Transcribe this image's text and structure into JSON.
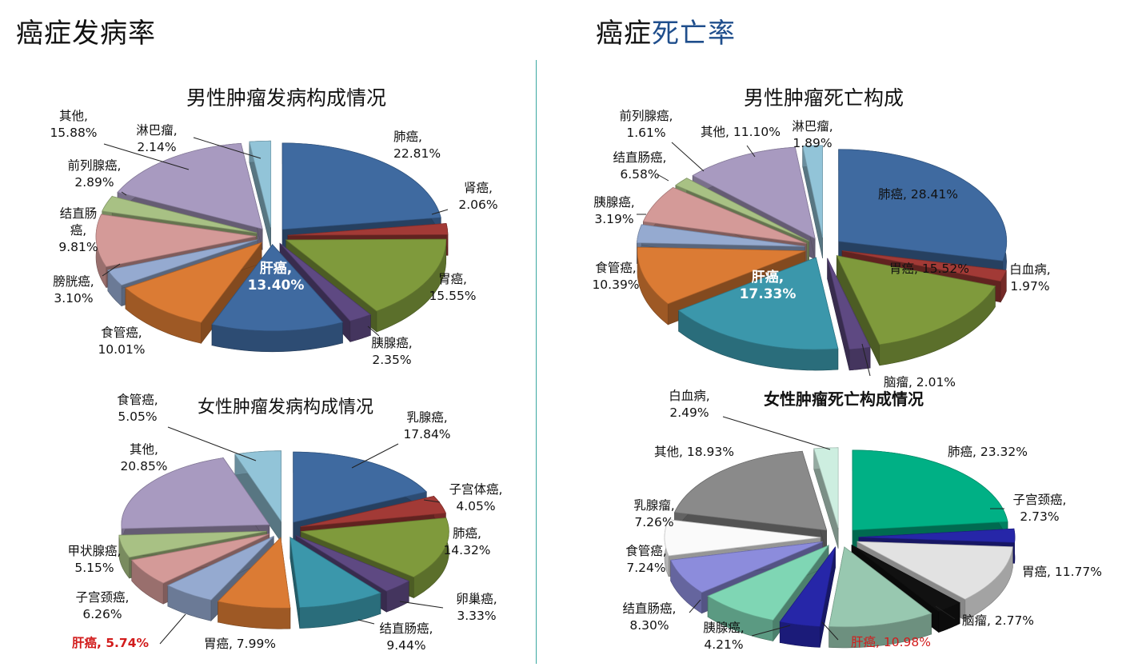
{
  "headings": {
    "incidence": "癌症发病率",
    "mortality_prefix": "癌症",
    "mortality_accent": "死亡率"
  },
  "chart_data": [
    {
      "id": "male_incidence",
      "type": "pie",
      "title": "男性肿瘤发病构成情况",
      "slices": [
        {
          "name": "肺癌",
          "value": 22.81,
          "color": "#3f6aa0",
          "labels": [
            "肺癌,",
            "22.81%"
          ]
        },
        {
          "name": "肾癌",
          "value": 2.06,
          "color": "#a23a36",
          "labels": [
            "肾癌,",
            "2.06%"
          ]
        },
        {
          "name": "胃癌",
          "value": 15.55,
          "color": "#7f9a3c",
          "labels": [
            "胃癌,",
            "15.55%"
          ]
        },
        {
          "name": "胰腺癌",
          "value": 2.35,
          "color": "#5e4982",
          "labels": [
            "胰腺癌,",
            "2.35%"
          ]
        },
        {
          "name": "肝癌",
          "value": 13.4,
          "color": "#3f6aa0",
          "labels": [
            "肝癌,",
            "13.40%"
          ],
          "inner": true
        },
        {
          "name": "食管癌",
          "value": 10.01,
          "color": "#db7b34",
          "labels": [
            "食管癌,",
            "10.01%"
          ]
        },
        {
          "name": "膀胱癌",
          "value": 3.1,
          "color": "#95aad0",
          "labels": [
            "膀胱癌,",
            "3.10%"
          ]
        },
        {
          "name": "结直肠癌",
          "value": 9.81,
          "color": "#d49a98",
          "labels": [
            "结直肠",
            "癌,",
            "9.81%"
          ]
        },
        {
          "name": "前列腺癌",
          "value": 2.89,
          "color": "#a8c184",
          "labels": [
            "前列腺癌,",
            "2.89%"
          ]
        },
        {
          "name": "其他",
          "value": 15.88,
          "color": "#a89ac0",
          "labels": [
            "其他,",
            "15.88%"
          ]
        },
        {
          "name": "淋巴瘤",
          "value": 2.14,
          "color": "#92c4d8",
          "labels": [
            "淋巴瘤,",
            "2.14%"
          ]
        }
      ]
    },
    {
      "id": "male_mortality",
      "type": "pie",
      "title": "男性肿瘤死亡构成",
      "slices": [
        {
          "name": "肺癌",
          "value": 28.41,
          "color": "#3f6aa0",
          "labels": [
            "肺癌, 28.41%"
          ],
          "inner": "dark"
        },
        {
          "name": "白血病",
          "value": 1.97,
          "color": "#a23a36",
          "labels": [
            "白血病,",
            "1.97%"
          ]
        },
        {
          "name": "胃癌",
          "value": 15.52,
          "color": "#7f9a3c",
          "labels": [
            "胃癌, 15.52%"
          ],
          "inner": "dark"
        },
        {
          "name": "脑瘤",
          "value": 2.01,
          "color": "#5e4982",
          "labels": [
            "脑瘤, 2.01%"
          ]
        },
        {
          "name": "肝癌",
          "value": 17.33,
          "color": "#3b97ab",
          "labels": [
            "肝癌,",
            "17.33%"
          ],
          "inner": true
        },
        {
          "name": "食管癌",
          "value": 10.39,
          "color": "#db7b34",
          "labels": [
            "食管癌,",
            "10.39%"
          ]
        },
        {
          "name": "胰腺癌",
          "value": 3.19,
          "color": "#95aad0",
          "labels": [
            "胰腺癌,",
            "3.19%"
          ]
        },
        {
          "name": "结直肠癌",
          "value": 6.58,
          "color": "#d49a98",
          "labels": [
            "结直肠癌,",
            "6.58%"
          ]
        },
        {
          "name": "前列腺癌",
          "value": 1.61,
          "color": "#a8c184",
          "labels": [
            "前列腺癌,",
            "1.61%"
          ]
        },
        {
          "name": "其他",
          "value": 11.1,
          "color": "#a89ac0",
          "labels": [
            "其他, 11.10%"
          ]
        },
        {
          "name": "淋巴瘤",
          "value": 1.89,
          "color": "#92c4d8",
          "labels": [
            "淋巴瘤,",
            "1.89%"
          ]
        }
      ]
    },
    {
      "id": "female_incidence",
      "type": "pie",
      "title": "女性肿瘤发病构成情况",
      "slices": [
        {
          "name": "乳腺癌",
          "value": 17.84,
          "color": "#3f6aa0",
          "labels": [
            "乳腺癌,",
            "17.84%"
          ]
        },
        {
          "name": "子宫体癌",
          "value": 4.05,
          "color": "#a23a36",
          "labels": [
            "子宫体癌,",
            "4.05%"
          ]
        },
        {
          "name": "肺癌",
          "value": 14.32,
          "color": "#7f9a3c",
          "labels": [
            "肺癌,",
            "14.32%"
          ]
        },
        {
          "name": "卵巢癌",
          "value": 3.33,
          "color": "#5e4982",
          "labels": [
            "卵巢癌,",
            "3.33%"
          ]
        },
        {
          "name": "结直肠癌",
          "value": 9.44,
          "color": "#3b97ab",
          "labels": [
            "结直肠癌,",
            "9.44%"
          ]
        },
        {
          "name": "胃癌",
          "value": 7.99,
          "color": "#db7b34",
          "labels": [
            "胃癌, 7.99%"
          ]
        },
        {
          "name": "肝癌",
          "value": 5.74,
          "color": "#95aad0",
          "labels": [
            "肝癌, 5.74%"
          ],
          "red": "bold"
        },
        {
          "name": "子宫颈癌",
          "value": 6.26,
          "color": "#d49a98",
          "labels": [
            "子宫颈癌,",
            "6.26%"
          ]
        },
        {
          "name": "甲状腺癌",
          "value": 5.15,
          "color": "#a8c184",
          "labels": [
            "甲状腺癌,",
            "5.15%"
          ]
        },
        {
          "name": "其他",
          "value": 20.85,
          "color": "#a89ac0",
          "labels": [
            "其他,",
            "20.85%"
          ]
        },
        {
          "name": "食管癌",
          "value": 5.05,
          "color": "#92c4d8",
          "labels": [
            "食管癌,",
            "5.05%"
          ]
        }
      ]
    },
    {
      "id": "female_mortality",
      "type": "pie",
      "title": "女性肿瘤死亡构成情况",
      "slices": [
        {
          "name": "肺癌",
          "value": 23.32,
          "color": "#00b085",
          "labels": [
            "肺癌, 23.32%"
          ]
        },
        {
          "name": "子宫颈癌",
          "value": 2.73,
          "color": "#2626a8",
          "labels": [
            "子宫颈癌,",
            "2.73%"
          ]
        },
        {
          "name": "胃癌",
          "value": 11.77,
          "color": "#e2e2e2",
          "labels": [
            "胃癌, 11.77%"
          ]
        },
        {
          "name": "脑瘤",
          "value": 2.77,
          "color": "#111111",
          "labels": [
            "脑瘤, 2.77%"
          ]
        },
        {
          "name": "肝癌",
          "value": 10.98,
          "color": "#98c8b0",
          "labels": [
            "肝癌, 10.98%"
          ],
          "red": "plain"
        },
        {
          "name": "胰腺癌",
          "value": 4.21,
          "color": "#2626a8",
          "labels": [
            "胰腺癌,",
            "4.21%"
          ]
        },
        {
          "name": "结直肠癌",
          "value": 8.3,
          "color": "#7fd6b4",
          "labels": [
            "结直肠癌,",
            "8.30%"
          ]
        },
        {
          "name": "食管癌",
          "value": 7.24,
          "color": "#8c8cdc",
          "labels": [
            "食管癌,",
            "7.24%"
          ]
        },
        {
          "name": "乳腺瘤",
          "value": 7.26,
          "color": "#fafafa",
          "labels": [
            "乳腺瘤,",
            "7.26%"
          ]
        },
        {
          "name": "其他",
          "value": 18.93,
          "color": "#8a8a8a",
          "labels": [
            "其他, 18.93%"
          ]
        },
        {
          "name": "白血病",
          "value": 2.49,
          "color": "#cdeee0",
          "labels": [
            "白血病,",
            "2.49%"
          ]
        }
      ]
    }
  ]
}
